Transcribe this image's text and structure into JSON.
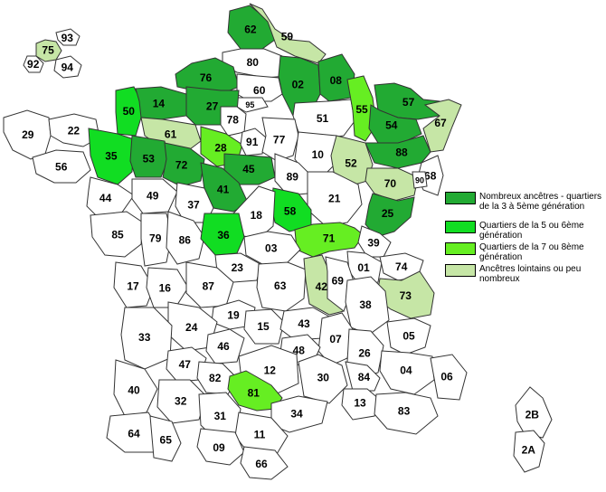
{
  "colors": {
    "level1": "#22aa33",
    "level2": "#11dd22",
    "level3": "#66ee22",
    "level4": "#c6e6a6",
    "none": "#ffffff"
  },
  "legend": [
    {
      "level": "level1",
      "label": "Nombreux ancêtres - quartiers de la 3 à 5ème génération"
    },
    {
      "level": "level2",
      "label": "Quartiers de la 5 ou 6ème génération"
    },
    {
      "level": "level3",
      "label": "Quartiers de la 7 ou 8ème génération"
    },
    {
      "level": "level4",
      "label": "Ancêtres lointains ou peu nombreux"
    }
  ],
  "departments": [
    {
      "code": "75",
      "level": "level4"
    },
    {
      "code": "92",
      "level": "none"
    },
    {
      "code": "93",
      "level": "none"
    },
    {
      "code": "94",
      "level": "none"
    },
    {
      "code": "62",
      "level": "level1"
    },
    {
      "code": "59",
      "level": "level4"
    },
    {
      "code": "80",
      "level": "none"
    },
    {
      "code": "76",
      "level": "level1"
    },
    {
      "code": "02",
      "level": "level1"
    },
    {
      "code": "08",
      "level": "level1"
    },
    {
      "code": "60",
      "level": "none"
    },
    {
      "code": "95",
      "level": "none"
    },
    {
      "code": "50",
      "level": "level2"
    },
    {
      "code": "14",
      "level": "level1"
    },
    {
      "code": "27",
      "level": "level1"
    },
    {
      "code": "78",
      "level": "none"
    },
    {
      "code": "51",
      "level": "none"
    },
    {
      "code": "55",
      "level": "level3"
    },
    {
      "code": "57",
      "level": "level1"
    },
    {
      "code": "67",
      "level": "level4"
    },
    {
      "code": "54",
      "level": "level1"
    },
    {
      "code": "29",
      "level": "none"
    },
    {
      "code": "22",
      "level": "none"
    },
    {
      "code": "61",
      "level": "level4"
    },
    {
      "code": "28",
      "level": "level3"
    },
    {
      "code": "91",
      "level": "none"
    },
    {
      "code": "77",
      "level": "none"
    },
    {
      "code": "35",
      "level": "level2"
    },
    {
      "code": "53",
      "level": "level1"
    },
    {
      "code": "72",
      "level": "level1"
    },
    {
      "code": "10",
      "level": "none"
    },
    {
      "code": "88",
      "level": "level1"
    },
    {
      "code": "56",
      "level": "none"
    },
    {
      "code": "45",
      "level": "level1"
    },
    {
      "code": "52",
      "level": "level4"
    },
    {
      "code": "68",
      "level": "none"
    },
    {
      "code": "89",
      "level": "none"
    },
    {
      "code": "70",
      "level": "level4"
    },
    {
      "code": "90",
      "level": "none"
    },
    {
      "code": "41",
      "level": "level1"
    },
    {
      "code": "44",
      "level": "none"
    },
    {
      "code": "49",
      "level": "none"
    },
    {
      "code": "37",
      "level": "none"
    },
    {
      "code": "21",
      "level": "none"
    },
    {
      "code": "25",
      "level": "level1"
    },
    {
      "code": "58",
      "level": "level2"
    },
    {
      "code": "18",
      "level": "none"
    },
    {
      "code": "85",
      "level": "none"
    },
    {
      "code": "79",
      "level": "none"
    },
    {
      "code": "86",
      "level": "none"
    },
    {
      "code": "36",
      "level": "level2"
    },
    {
      "code": "71",
      "level": "level3"
    },
    {
      "code": "39",
      "level": "none"
    },
    {
      "code": "03",
      "level": "none"
    },
    {
      "code": "01",
      "level": "none"
    },
    {
      "code": "74",
      "level": "none"
    },
    {
      "code": "23",
      "level": "none"
    },
    {
      "code": "17",
      "level": "none"
    },
    {
      "code": "16",
      "level": "none"
    },
    {
      "code": "87",
      "level": "none"
    },
    {
      "code": "63",
      "level": "none"
    },
    {
      "code": "42",
      "level": "level4"
    },
    {
      "code": "69",
      "level": "none"
    },
    {
      "code": "73",
      "level": "level4"
    },
    {
      "code": "19",
      "level": "none"
    },
    {
      "code": "38",
      "level": "none"
    },
    {
      "code": "24",
      "level": "none"
    },
    {
      "code": "15",
      "level": "none"
    },
    {
      "code": "43",
      "level": "none"
    },
    {
      "code": "33",
      "level": "none"
    },
    {
      "code": "46",
      "level": "none"
    },
    {
      "code": "07",
      "level": "none"
    },
    {
      "code": "26",
      "level": "none"
    },
    {
      "code": "05",
      "level": "none"
    },
    {
      "code": "48",
      "level": "none"
    },
    {
      "code": "47",
      "level": "none"
    },
    {
      "code": "12",
      "level": "none"
    },
    {
      "code": "40",
      "level": "none"
    },
    {
      "code": "82",
      "level": "none"
    },
    {
      "code": "30",
      "level": "none"
    },
    {
      "code": "84",
      "level": "none"
    },
    {
      "code": "04",
      "level": "none"
    },
    {
      "code": "06",
      "level": "none"
    },
    {
      "code": "32",
      "level": "none"
    },
    {
      "code": "81",
      "level": "level3"
    },
    {
      "code": "13",
      "level": "none"
    },
    {
      "code": "31",
      "level": "none"
    },
    {
      "code": "34",
      "level": "none"
    },
    {
      "code": "83",
      "level": "none"
    },
    {
      "code": "64",
      "level": "none"
    },
    {
      "code": "65",
      "level": "none"
    },
    {
      "code": "11",
      "level": "none"
    },
    {
      "code": "09",
      "level": "none"
    },
    {
      "code": "66",
      "level": "none"
    },
    {
      "code": "2B",
      "level": "none"
    },
    {
      "code": "2A",
      "level": "none"
    }
  ]
}
